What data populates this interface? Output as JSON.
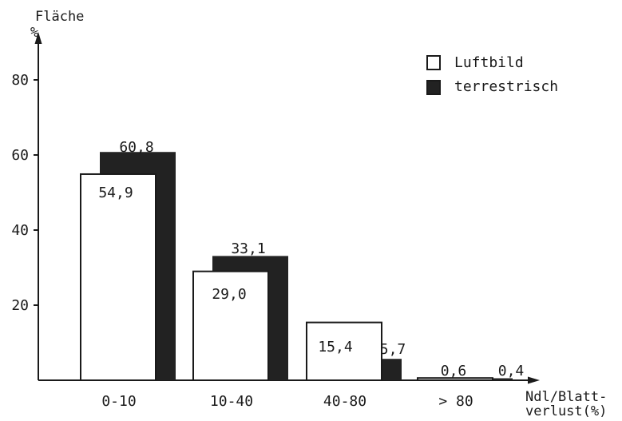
{
  "chart_data": {
    "type": "bar",
    "y_title_line1": "Fläche",
    "y_title_line2": "%",
    "x_title_line1": "Ndl/Blatt-",
    "x_title_line2": "verlust(%)",
    "categories": [
      "0-10",
      "10-40",
      "40-80",
      "> 80"
    ],
    "series": [
      {
        "name": "Luftbild",
        "values": [
          54.9,
          29.0,
          15.4,
          0.6
        ],
        "labels": [
          "54,9",
          "29,0",
          "15,4",
          "0,6"
        ],
        "color": "#ffffff"
      },
      {
        "name": "terrestrisch",
        "values": [
          60.8,
          33.1,
          5.7,
          0.4
        ],
        "labels": [
          "60,8",
          "33,1",
          "5,7",
          "0,4"
        ],
        "color": "#222222"
      }
    ],
    "y_ticks": [
      {
        "value": 20,
        "label": "20"
      },
      {
        "value": 40,
        "label": "40"
      },
      {
        "value": 60,
        "label": "60"
      },
      {
        "value": 80,
        "label": "80"
      }
    ],
    "ylim": [
      0,
      80
    ],
    "grid": false,
    "legend_position": "top-right"
  }
}
